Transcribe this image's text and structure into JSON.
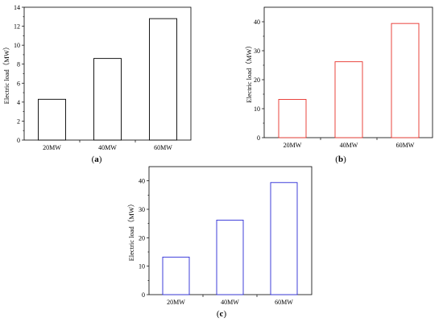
{
  "chart_data": [
    {
      "panel": "(a)",
      "panel_letter": "a",
      "type": "bar",
      "categories": [
        "20MW",
        "40MW",
        "60MW"
      ],
      "values": [
        4.3,
        8.6,
        12.8
      ],
      "ylabel": "Electric load（MW）",
      "ylim": [
        0,
        14
      ],
      "yticks": [
        0,
        2,
        4,
        6,
        8,
        10,
        12,
        14
      ],
      "grid": false,
      "bar_color": "#000000"
    },
    {
      "panel": "(b)",
      "panel_letter": "b",
      "type": "bar",
      "categories": [
        "20MW",
        "40MW",
        "60MW"
      ],
      "values": [
        13.2,
        26.2,
        39.4
      ],
      "ylabel": "Electric load（MW）",
      "ylim": [
        0,
        45
      ],
      "yticks": [
        0,
        10,
        20,
        30,
        40
      ],
      "grid": false,
      "bar_color": "#e8302a"
    },
    {
      "panel": "(c)",
      "panel_letter": "c",
      "type": "bar",
      "categories": [
        "20MW",
        "40MW",
        "60MW"
      ],
      "values": [
        13.2,
        26.2,
        39.4
      ],
      "ylabel": "Electric load（MW）",
      "ylim": [
        0,
        45
      ],
      "yticks": [
        0,
        10,
        20,
        30,
        40
      ],
      "grid": false,
      "bar_color": "#2b2bd6"
    }
  ]
}
